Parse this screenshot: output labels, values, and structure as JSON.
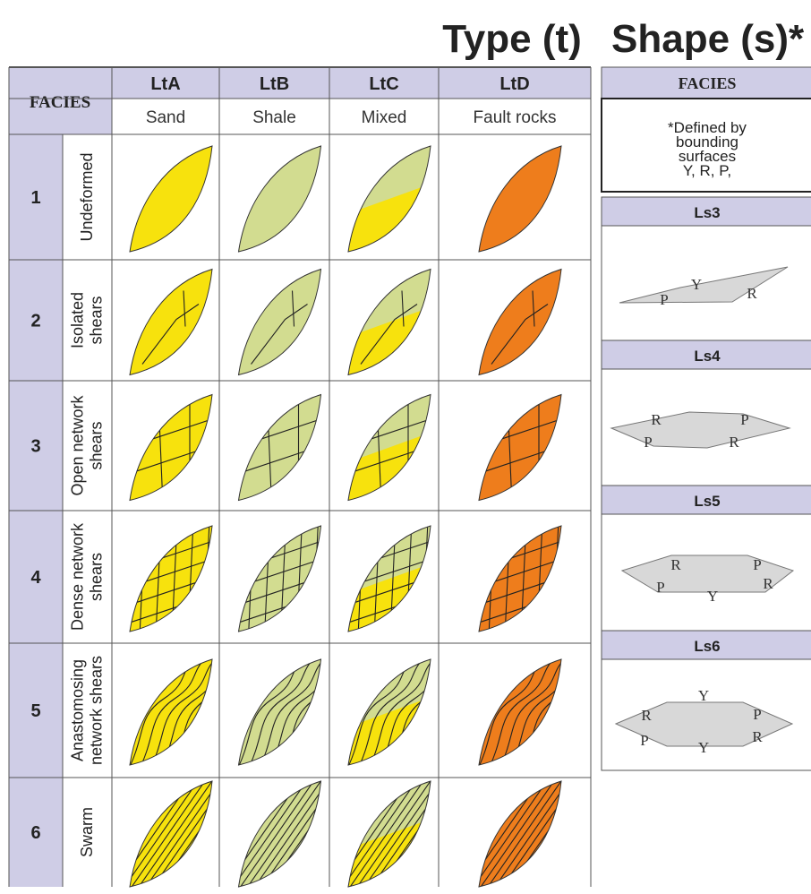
{
  "header": {
    "type_title": "Type (t)",
    "shape_title": "Shape (s)*"
  },
  "facies_table": {
    "corner": "FACIES",
    "columns": [
      {
        "code": "LtA",
        "lithology": "Sand"
      },
      {
        "code": "LtB",
        "lithology": "Shale"
      },
      {
        "code": "LtC",
        "lithology": "Mixed"
      },
      {
        "code": "LtD",
        "lithology": "Fault rocks"
      }
    ],
    "rows": [
      {
        "number": "1",
        "label": [
          "Undeformed"
        ]
      },
      {
        "number": "2",
        "label": [
          "Isolated",
          "shears"
        ]
      },
      {
        "number": "3",
        "label": [
          "Open network",
          "shears"
        ]
      },
      {
        "number": "4",
        "label": [
          "Dense network",
          "shears"
        ]
      },
      {
        "number": "5",
        "label": [
          "Anastomosing",
          "network shears"
        ]
      },
      {
        "number": "6",
        "label": [
          "Swarm"
        ]
      }
    ]
  },
  "shape_table": {
    "header": "FACIES",
    "note": [
      "*Defined by",
      "bounding",
      "surfaces",
      "Y, R, P,"
    ],
    "shapes": [
      {
        "code": "Ls3",
        "labels": [
          "P",
          "Y",
          "R"
        ]
      },
      {
        "code": "Ls4",
        "labels": [
          "R",
          "P",
          "P",
          "R"
        ]
      },
      {
        "code": "Ls5",
        "labels": [
          "R",
          "P",
          "P",
          "Y",
          "R"
        ]
      },
      {
        "code": "Ls6",
        "labels": [
          "Y",
          "R",
          "P",
          "P",
          "R",
          "Y"
        ]
      }
    ]
  }
}
